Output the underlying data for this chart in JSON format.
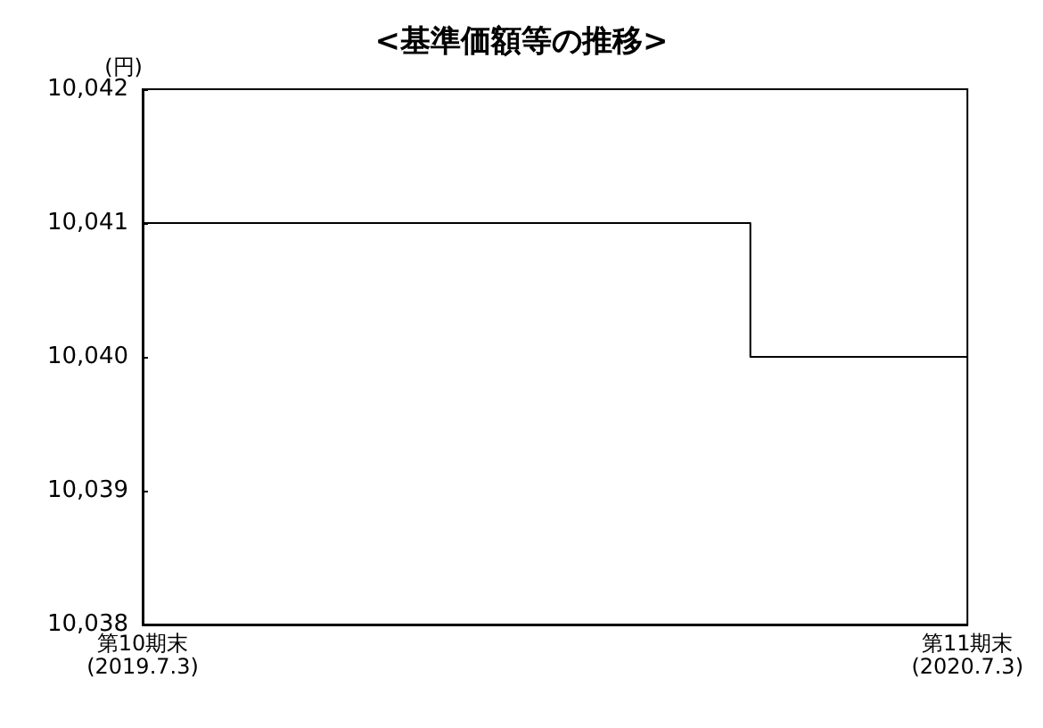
{
  "chart_data": {
    "type": "step",
    "title": "<基準価額等の推移>",
    "ylabel": "(円)",
    "categories": [
      "第10期末\n(2019.7.3)",
      null,
      null,
      null,
      null,
      null,
      null,
      null,
      null,
      null,
      null,
      null,
      null,
      null,
      null,
      null,
      null,
      null,
      null,
      "第11期末\n(2020.7.3)"
    ],
    "values": [
      10041,
      10041,
      10041,
      10041,
      10041,
      10041,
      10041,
      10041,
      10041,
      10041,
      10041,
      10041,
      10041,
      10041,
      10040,
      10040,
      10040,
      10040,
      10040,
      10040
    ],
    "color": "#000000",
    "ylim": [
      10038,
      10042
    ],
    "yticks": [
      {
        "value": 10038,
        "label": "10,038"
      },
      {
        "value": 10039,
        "label": "10,039"
      },
      {
        "value": 10040,
        "label": "10,040"
      },
      {
        "value": 10041,
        "label": "10,041"
      },
      {
        "value": 10042,
        "label": "10,042"
      }
    ],
    "grid": false,
    "marker": "none",
    "line_style": "solid"
  }
}
